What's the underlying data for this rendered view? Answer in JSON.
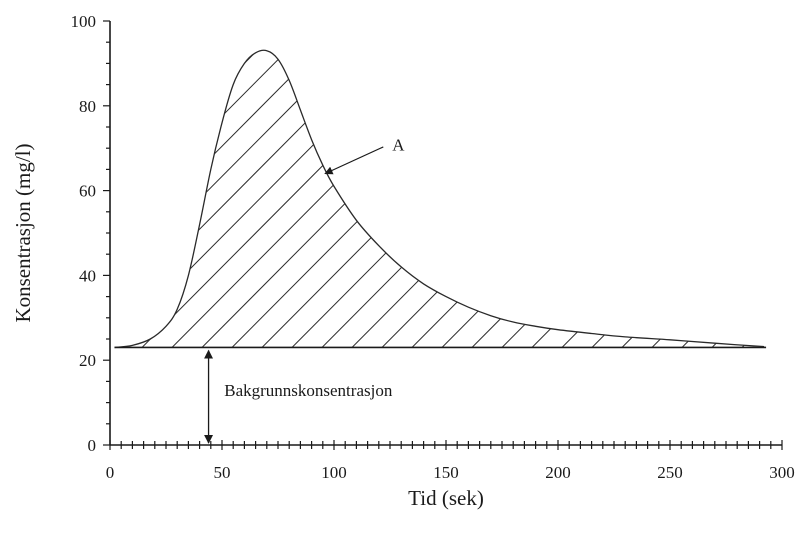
{
  "chart_data": {
    "type": "line",
    "xlabel": "Tid (sek)",
    "ylabel": "Konsentrasjon (mg/l)",
    "xlim": [
      0,
      300
    ],
    "ylim": [
      0,
      100
    ],
    "x_ticks": [
      "0",
      "50",
      "100",
      "150",
      "200",
      "250",
      "300"
    ],
    "y_ticks": [
      "0",
      "20",
      "40",
      "60",
      "80",
      "100"
    ],
    "grid": false,
    "baseline": 23,
    "series": [
      {
        "x": [
          2,
          10,
          18,
          25,
          30,
          35,
          40,
          45,
          50,
          55,
          60,
          65,
          70,
          75,
          80,
          85,
          90,
          95,
          100,
          110,
          120,
          130,
          140,
          150,
          160,
          170,
          180,
          190,
          200,
          215,
          230,
          250,
          270,
          292
        ],
        "y": [
          23,
          23.5,
          25,
          28,
          32,
          40,
          52,
          65,
          76,
          85,
          90,
          92.5,
          93,
          91,
          86,
          79,
          72,
          66,
          61,
          53,
          47,
          42,
          38,
          35,
          32.5,
          30.5,
          29,
          28,
          27.2,
          26.3,
          25.5,
          24.8,
          24,
          23.2
        ]
      }
    ],
    "annotations": [
      {
        "text": "A",
        "x": 130,
        "y": 70
      },
      {
        "text": "Bakgrunnskonsentrasjon",
        "x": 50,
        "y": 12
      }
    ]
  }
}
